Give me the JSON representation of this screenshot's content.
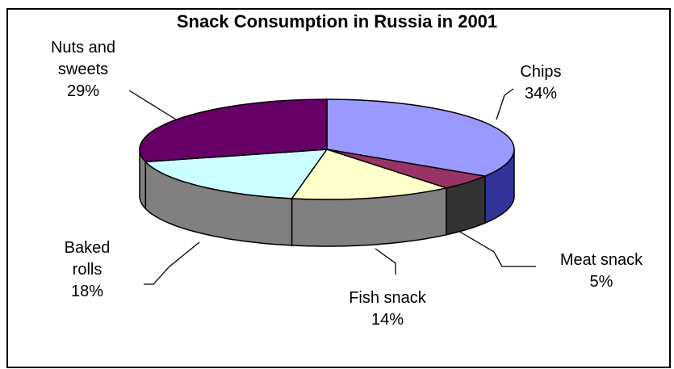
{
  "chart_data": {
    "type": "pie",
    "title": "Snack Consumption in Russia in 2001",
    "three_d": true,
    "slices": [
      {
        "label": "Chips",
        "value": 34,
        "value_label": "34%",
        "color": "#9999ff",
        "side_color": "#333399"
      },
      {
        "label": "Meat snack",
        "value": 5,
        "value_label": "5%",
        "color": "#993366",
        "side_color": "#333333"
      },
      {
        "label": "Fish snack",
        "value": 14,
        "value_label": "14%",
        "color": "#ffffcc",
        "side_color": "#808080"
      },
      {
        "label": "Baked rolls",
        "value": 18,
        "value_label": "18%",
        "color": "#ccffff",
        "side_color": "#808080"
      },
      {
        "label": "Nuts and sweets",
        "value": 29,
        "value_label": "29%",
        "color": "#660066",
        "side_color": "#808080"
      }
    ],
    "label_lines": {
      "chips": [
        "Chips",
        "34%"
      ],
      "meat": [
        "Meat snack",
        "5%"
      ],
      "fish": [
        "Fish snack",
        "14%"
      ],
      "baked": [
        "Baked",
        "rolls",
        "18%"
      ],
      "nuts": [
        "Nuts and",
        "sweets",
        "29%"
      ]
    }
  }
}
